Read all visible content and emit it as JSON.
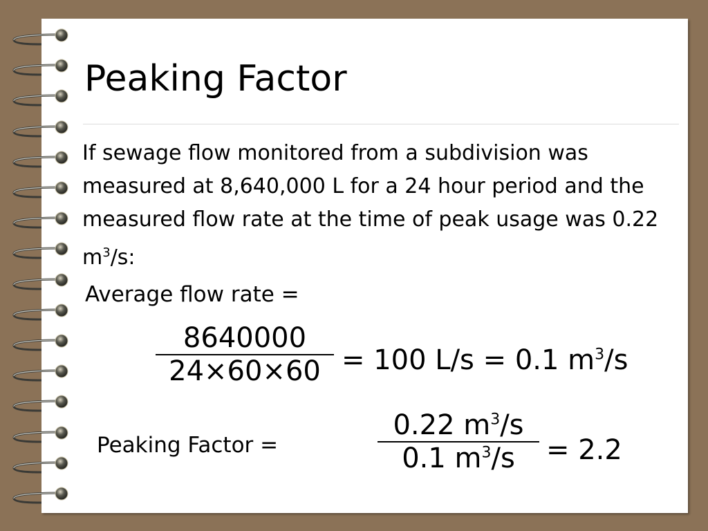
{
  "slide": {
    "title": "Peaking Factor",
    "body_text": "If sewage flow monitored from a subdivision was measured at 8,640,000 L for a 24 hour period and the measured flow rate at the time of peak usage was 0.22 m",
    "body_sup": "3",
    "body_end": "/s:",
    "avg_label": "Average flow rate =",
    "avg_numerator": "8640000",
    "avg_denominator": "24×60×60",
    "avg_result_1": "= 100 L/s = 0.1 m",
    "avg_result_sup": "3",
    "avg_result_2": "/s",
    "pf_label": "Peaking Factor =",
    "pf_numerator": "0.22 m",
    "pf_num_sup": "3",
    "pf_num_end": "/s",
    "pf_denominator": "0.1 m",
    "pf_den_sup": "3",
    "pf_den_end": "/s",
    "pf_result": "= 2.2"
  },
  "colors": {
    "background": "#8b7257",
    "paper": "#ffffff"
  },
  "decoration": {
    "binding": "spiral-rings",
    "ring_count": 16
  }
}
